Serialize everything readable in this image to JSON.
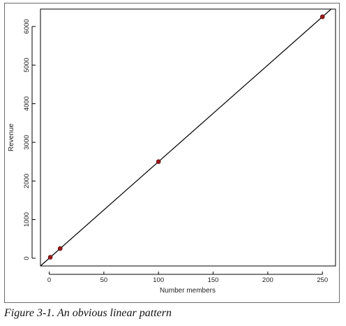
{
  "figure": {
    "caption": "Figure 3-1. An obvious linear pattern"
  },
  "colors": {
    "point_fill": "#9b1b1b",
    "line": "#000000",
    "frame": "#000000"
  },
  "chart_data": {
    "type": "scatter",
    "title": "",
    "xlabel": "Number members",
    "ylabel": "Revenue",
    "xlim": [
      -8,
      262
    ],
    "ylim": [
      -200,
      6450
    ],
    "xticks": [
      0,
      50,
      100,
      150,
      200,
      250
    ],
    "yticks": [
      0,
      1000,
      2000,
      3000,
      4000,
      5000,
      6000
    ],
    "grid": false,
    "legend": "none",
    "series": [
      {
        "x": [
          1,
          10,
          100,
          250
        ],
        "y": [
          25,
          250,
          2500,
          6250
        ]
      }
    ],
    "fit_line": {
      "slope": 25,
      "intercept": 0
    }
  }
}
